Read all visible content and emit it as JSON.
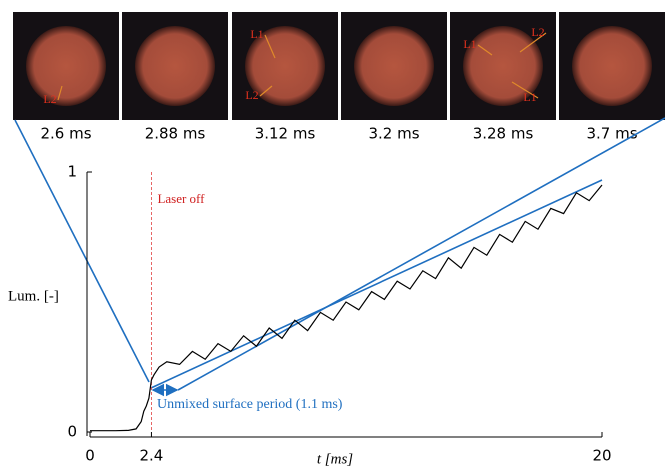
{
  "chart_data": {
    "type": "line",
    "frames": [
      {
        "label": "2.6 ms",
        "marks": [
          "L2"
        ]
      },
      {
        "label": "2.88 ms",
        "marks": []
      },
      {
        "label": "3.12 ms",
        "marks": [
          "L1",
          "L2"
        ]
      },
      {
        "label": "3.2 ms",
        "marks": []
      },
      {
        "label": "3.28 ms",
        "marks": [
          "L1",
          "L2",
          "L1"
        ]
      },
      {
        "label": "3.7 ms",
        "marks": []
      }
    ],
    "x_label": "t [ms]",
    "y_label": "Lum. [-]",
    "x": [
      0,
      0.5,
      1,
      1.5,
      1.8,
      2.0,
      2.1,
      2.2,
      2.3,
      2.4,
      2.5,
      2.7,
      3,
      3.5,
      4,
      4.5,
      5,
      5.5,
      6,
      6.5,
      7,
      7.5,
      8,
      8.5,
      9,
      9.5,
      10,
      10.5,
      11,
      11.5,
      12,
      12.5,
      13,
      13.5,
      14,
      14.5,
      15,
      15.5,
      16,
      16.5,
      17,
      17.5,
      18,
      18.5,
      19,
      19.5,
      20
    ],
    "values": [
      0.005,
      0.005,
      0.005,
      0.006,
      0.012,
      0.04,
      0.08,
      0.1,
      0.13,
      0.2,
      0.22,
      0.25,
      0.27,
      0.26,
      0.31,
      0.28,
      0.34,
      0.31,
      0.37,
      0.33,
      0.4,
      0.36,
      0.43,
      0.39,
      0.46,
      0.43,
      0.5,
      0.47,
      0.54,
      0.51,
      0.58,
      0.55,
      0.62,
      0.59,
      0.67,
      0.63,
      0.71,
      0.68,
      0.76,
      0.73,
      0.81,
      0.78,
      0.86,
      0.84,
      0.92,
      0.89,
      0.95
    ],
    "color": "#000000",
    "xlim": [
      0,
      20
    ],
    "ylim": [
      0,
      1
    ],
    "xticks": [
      0,
      2.4,
      20
    ],
    "yticks": [
      0,
      1
    ],
    "laser_off": {
      "x": 2.4,
      "text": "Laser off"
    },
    "period_text": "Unmixed surface period (1.1 ms)"
  }
}
